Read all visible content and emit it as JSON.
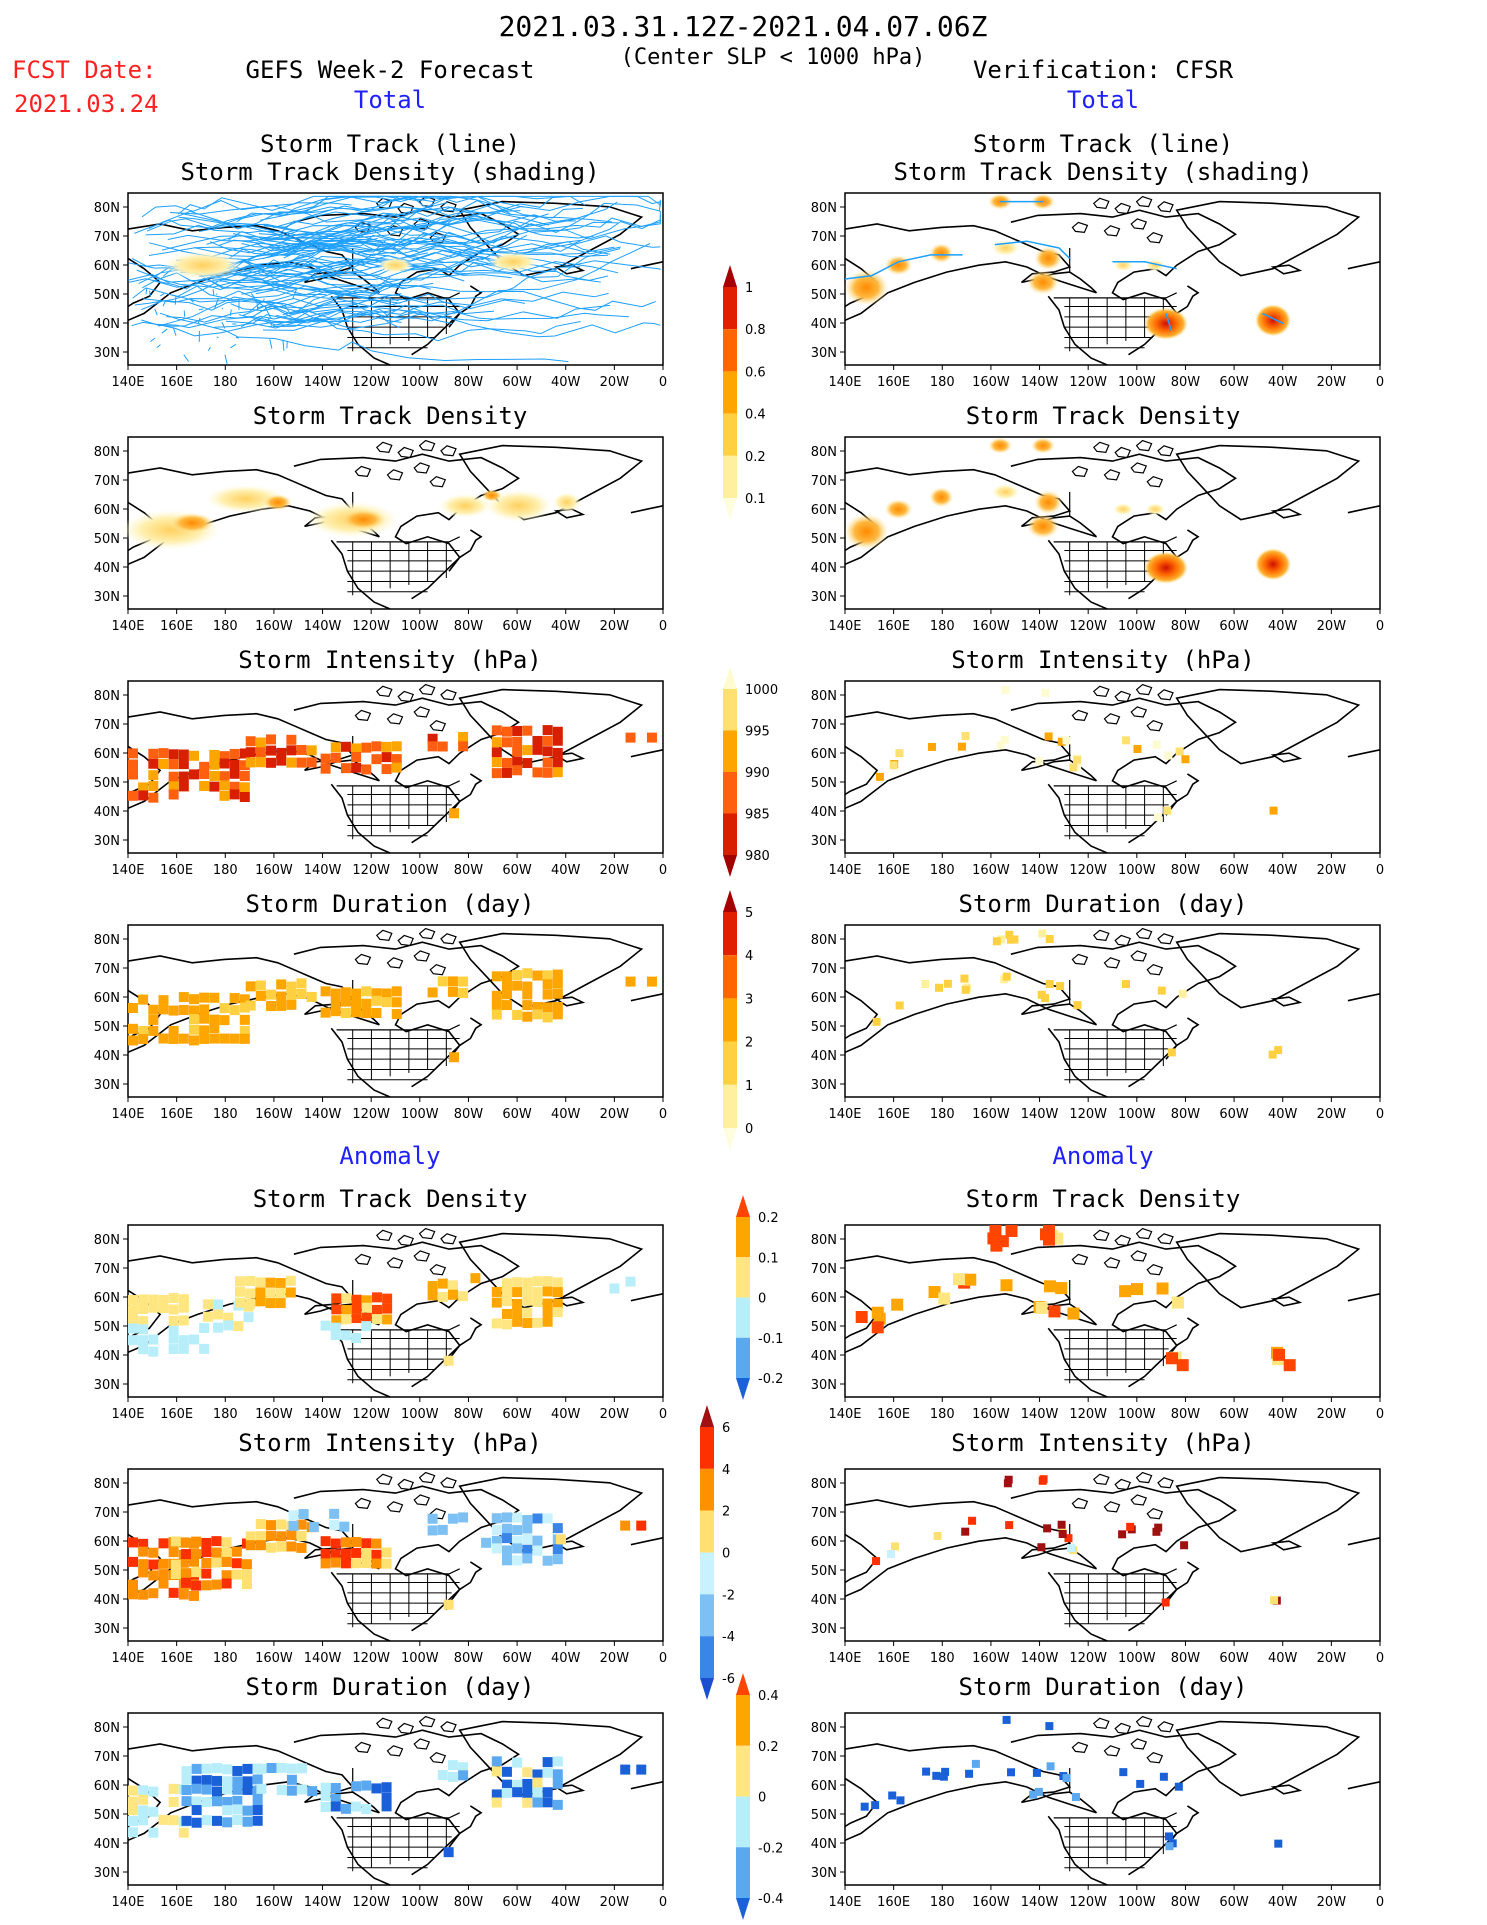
{
  "header": {
    "date_range": "2021.03.31.12Z-2021.04.07.06Z",
    "condition": "(Center SLP < 1000 hPa)",
    "fcst_label": "FCST Date:",
    "fcst_date": "2021.03.24",
    "left_title": "GEFS Week-2 Forecast",
    "right_title": "Verification: CFSR",
    "total_label": "Total",
    "anomaly_label": "Anomaly"
  },
  "panel_titles": {
    "track": [
      "Storm Track (line)",
      "Storm Track Density (shading)"
    ],
    "density": "Storm Track Density",
    "intensity": "Storm Intensity (hPa)",
    "duration": "Storm Duration (day)"
  },
  "axes": {
    "lon_labels": [
      "140E",
      "160E",
      "180",
      "160W",
      "140W",
      "120W",
      "100W",
      "80W",
      "60W",
      "40W",
      "20W",
      "0"
    ],
    "lat_labels": [
      "80N",
      "70N",
      "60N",
      "50N",
      "40N",
      "30N"
    ]
  },
  "colorbars": {
    "density_total": {
      "labels": [
        "1",
        "0.8",
        "0.6",
        "0.4",
        "0.2",
        "0.1"
      ],
      "colors": [
        "#a50000",
        "#e02000",
        "#ff6600",
        "#ffa500",
        "#ffd040",
        "#fff0a0",
        "#fffde0"
      ]
    },
    "intensity_total": {
      "labels": [
        "1000",
        "995",
        "990",
        "985",
        "980"
      ],
      "colors": [
        "#fffbd0",
        "#ffe070",
        "#ffa500",
        "#ff6010",
        "#d82000",
        "#a00000"
      ]
    },
    "duration_total": {
      "labels": [
        "5",
        "4",
        "3",
        "2",
        "1",
        "0"
      ],
      "colors": [
        "#a50000",
        "#e02000",
        "#ff6600",
        "#ffa500",
        "#ffd040",
        "#fff0a0",
        "#fffde0"
      ]
    },
    "density_anom": {
      "labels": [
        "0.2",
        "0.1",
        "0",
        "-0.1",
        "-0.2"
      ],
      "colors": [
        "#ff4500",
        "#ffa500",
        "#ffe680",
        "#b8eefa",
        "#5aa8f0",
        "#1a60d8"
      ]
    },
    "intensity_anom": {
      "labels": [
        "6",
        "4",
        "2",
        "0",
        "-2",
        "-4",
        "-6"
      ],
      "colors": [
        "#a01010",
        "#ff3000",
        "#ff9000",
        "#ffe070",
        "#c8f2ff",
        "#7cc0f4",
        "#3a86e8",
        "#1a50d0"
      ]
    },
    "duration_anom": {
      "labels": [
        "0.4",
        "0.2",
        "0",
        "-0.2",
        "-0.4"
      ],
      "colors": [
        "#ff4500",
        "#ffa500",
        "#ffe680",
        "#b8eefa",
        "#5aa8f0",
        "#1a60d8"
      ]
    }
  },
  "colors": {
    "track_line": "#1ea0ff",
    "title_red": "#ff2020",
    "section_blue": "#2020ff"
  }
}
